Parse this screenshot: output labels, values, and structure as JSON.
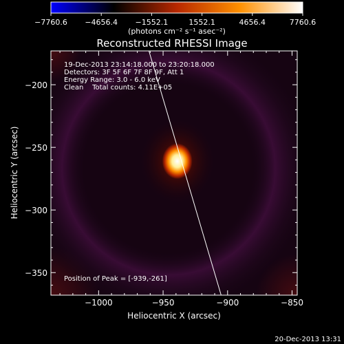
{
  "chart_data": {
    "type": "heatmap",
    "title": "Reconstructed RHESSI Image",
    "xlabel": "Heliocentric X (arcsec)",
    "ylabel": "Heliocentric Y (arcsec)",
    "xlim": [
      -1037,
      -846
    ],
    "ylim": [
      -368,
      -173
    ],
    "x_ticks": [
      {
        "value": -1000,
        "label": "−1000"
      },
      {
        "value": -950,
        "label": "−950"
      },
      {
        "value": -900,
        "label": "−900"
      },
      {
        "value": -850,
        "label": "−850"
      }
    ],
    "y_ticks": [
      {
        "value": -200,
        "label": "−200"
      },
      {
        "value": -250,
        "label": "−250"
      },
      {
        "value": -300,
        "label": "−300"
      },
      {
        "value": -350,
        "label": "−350"
      }
    ],
    "colorbar": {
      "range": [
        -7760.6,
        7760.6
      ],
      "tick_values": [
        -7760.6,
        -4656.4,
        -1552.1,
        1552.1,
        4656.4,
        7760.6
      ],
      "tick_labels": [
        "−7760.6",
        "−4656.4",
        "−1552.1",
        "1552.1",
        "4656.4",
        "7760.6"
      ],
      "units": "(photons cm⁻² s⁻¹ asec⁻²)",
      "colormap": [
        "#0000ff",
        "#000000",
        "#b82800",
        "#ff9000",
        "#ffffff"
      ]
    },
    "peak": {
      "x": -939,
      "y": -261,
      "value": 7760.6
    },
    "limb_line": [
      [
        -961,
        -173
      ],
      [
        -905,
        -368
      ]
    ],
    "annotations": [
      "19-Dec-2013 23:14:18.000 to 23:20:18.000",
      "Detectors: 3F 5F 6F 7F 8F 9F, Att 1",
      "Energy Range: 3.0 - 6.0 keV",
      "Clean    Total counts: 4.11E+05"
    ],
    "peak_label": "Position of Peak = [-939,-261]",
    "footer_timestamp": "20-Dec-2013 13:31"
  }
}
